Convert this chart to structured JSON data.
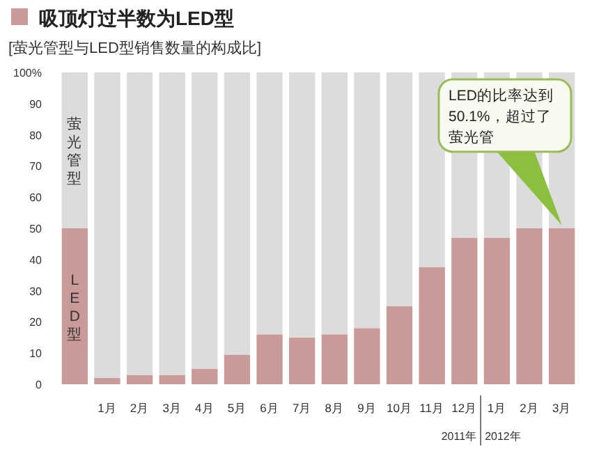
{
  "chart_data": {
    "type": "bar",
    "title": "吸顶灯过半数为LED型",
    "subtitle": "[萤光管型与LED型销售数量的构成比]",
    "categories": [
      null,
      "1月",
      "2月",
      "3月",
      "4月",
      "5月",
      "6月",
      "7月",
      "8月",
      "9月",
      "10月",
      "11月",
      "12月",
      "1月",
      "2月",
      "3月"
    ],
    "stacked": true,
    "series": [
      {
        "name": "LED型",
        "color": "#c99a98",
        "values": [
          50,
          2,
          3,
          3,
          5,
          9.5,
          16,
          15,
          16,
          18,
          25,
          37.5,
          47,
          47,
          50,
          50.1
        ]
      },
      {
        "name": "萤光管型",
        "color": "#dcdcdc",
        "values": [
          50,
          98,
          97,
          97,
          95,
          90.5,
          84,
          85,
          84,
          82,
          75,
          62.5,
          53,
          53,
          50,
          49.9
        ]
      }
    ],
    "ylim": [
      0,
      100
    ],
    "yticks": [
      0,
      10,
      20,
      30,
      40,
      50,
      60,
      70,
      80,
      90,
      {
        "value": 100,
        "label": "100%"
      }
    ],
    "annotations": [
      "LED的比率达到50.1%，超过了萤光管",
      "2011年",
      "2012年"
    ]
  }
}
